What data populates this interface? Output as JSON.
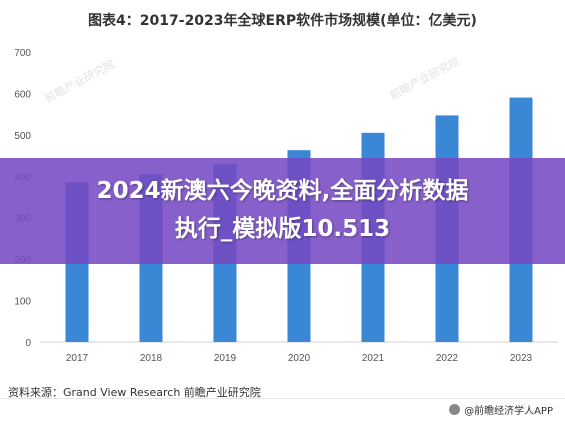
{
  "title": "图表4：2017-2023年全球ERP软件市场规模(单位：亿美元)",
  "overlay": {
    "line1": "2024新澳六今晚资料,全面分析数据",
    "line2": "执行_模拟版10.513"
  },
  "watermark": "前瞻产业研究院",
  "source": "资料来源：Grand View Research 前瞻产业研究院",
  "footer_brand": "@前瞻经济学人APP",
  "chart_data": {
    "type": "bar",
    "title": "图表4：2017-2023年全球ERP软件市场规模(单位：亿美元)",
    "categories": [
      "2017",
      "2018",
      "2019",
      "2020",
      "2021",
      "2022",
      "2023"
    ],
    "values": [
      385,
      405,
      430,
      463,
      505,
      547,
      590
    ],
    "ylim": [
      0,
      700
    ],
    "yticks": [
      0,
      100,
      200,
      300,
      400,
      500,
      600,
      700
    ],
    "grid": false,
    "bar_color": "#3a87d6"
  }
}
